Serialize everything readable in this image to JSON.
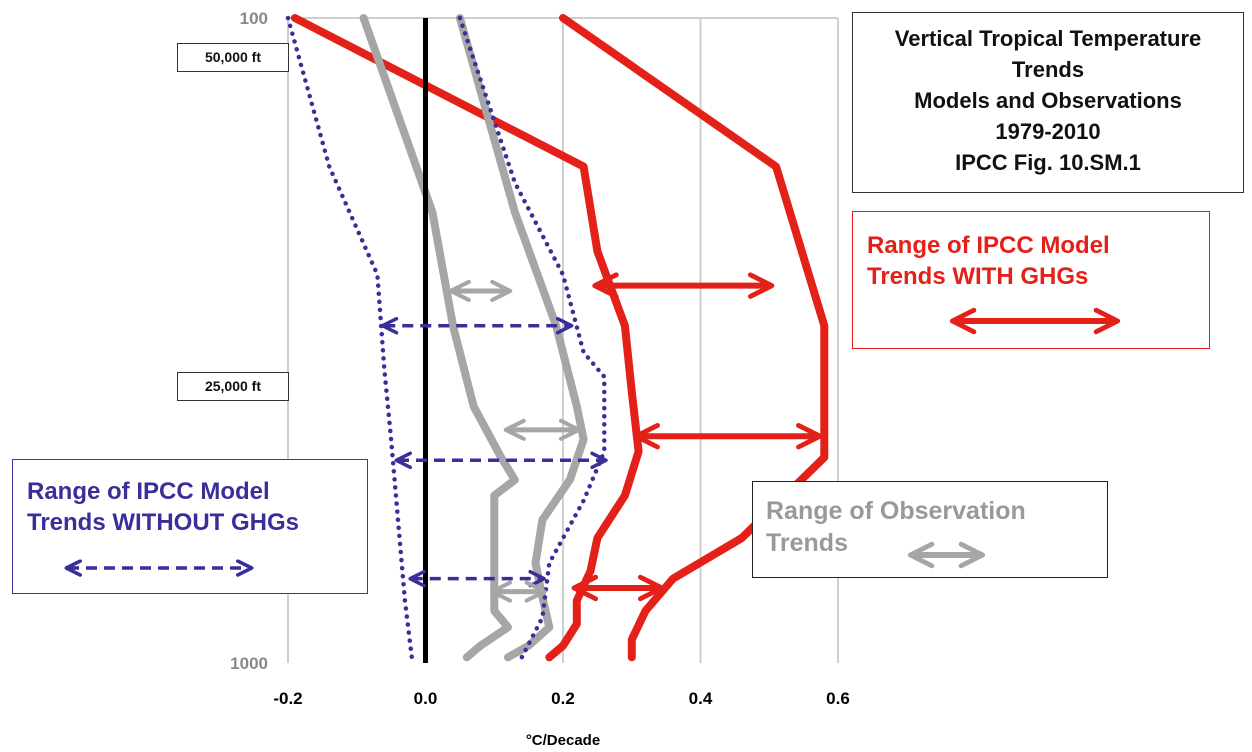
{
  "chart_data": {
    "type": "line",
    "title_lines": [
      "Vertical Tropical Temperature",
      "Trends",
      "Models and Observations",
      "1979-2010",
      "IPCC Fig. 10.SM.1"
    ],
    "xlabel": "°C/Decade",
    "x_ticks": [
      "-0.2",
      "0.0",
      "0.2",
      "0.4",
      "0.6"
    ],
    "x_tick_values": [
      -0.2,
      0.0,
      0.2,
      0.4,
      0.6
    ],
    "xlim": [
      -0.2,
      0.6
    ],
    "y_ticks": [
      "100",
      "1000"
    ],
    "y_axis_direction": "pressure decreasing upward",
    "altitude_labels": [
      "50,000 ft",
      "25,000 ft"
    ],
    "grid": true,
    "series": [
      {
        "role": "with_ghg_min",
        "color": "#e32119",
        "style": "solid",
        "points": [
          [
            -0.19,
            100
          ],
          [
            0.23,
            170
          ],
          [
            0.25,
            230
          ],
          [
            0.29,
            300
          ],
          [
            0.3,
            380
          ],
          [
            0.31,
            470
          ],
          [
            0.29,
            550
          ],
          [
            0.25,
            640
          ],
          [
            0.24,
            720
          ],
          [
            0.22,
            800
          ],
          [
            0.22,
            870
          ],
          [
            0.2,
            940
          ],
          [
            0.18,
            980
          ]
        ]
      },
      {
        "role": "with_ghg_max",
        "color": "#e32119",
        "style": "solid",
        "points": [
          [
            0.2,
            100
          ],
          [
            0.51,
            170
          ],
          [
            0.58,
            300
          ],
          [
            0.58,
            480
          ],
          [
            0.46,
            640
          ],
          [
            0.36,
            740
          ],
          [
            0.32,
            830
          ],
          [
            0.3,
            920
          ],
          [
            0.3,
            980
          ]
        ]
      },
      {
        "role": "obs_min",
        "color": "#a6a6a6",
        "style": "solid",
        "points": [
          [
            -0.09,
            100
          ],
          [
            0.01,
            200
          ],
          [
            0.04,
            300
          ],
          [
            0.07,
            400
          ],
          [
            0.11,
            480
          ],
          [
            0.13,
            520
          ],
          [
            0.1,
            550
          ],
          [
            0.1,
            690
          ],
          [
            0.1,
            830
          ],
          [
            0.12,
            880
          ],
          [
            0.08,
            940
          ],
          [
            0.06,
            980
          ]
        ]
      },
      {
        "role": "obs_max",
        "color": "#a6a6a6",
        "style": "solid",
        "points": [
          [
            0.05,
            100
          ],
          [
            0.13,
            200
          ],
          [
            0.19,
            300
          ],
          [
            0.22,
            400
          ],
          [
            0.23,
            450
          ],
          [
            0.21,
            520
          ],
          [
            0.17,
            600
          ],
          [
            0.16,
            700
          ],
          [
            0.17,
            790
          ],
          [
            0.18,
            880
          ],
          [
            0.15,
            940
          ],
          [
            0.12,
            980
          ]
        ]
      },
      {
        "role": "without_ghg_min",
        "color": "#3a2f99",
        "style": "dotted",
        "points": [
          [
            -0.2,
            100
          ],
          [
            -0.14,
            170
          ],
          [
            -0.07,
            250
          ],
          [
            -0.06,
            350
          ],
          [
            -0.05,
            450
          ],
          [
            -0.04,
            600
          ],
          [
            -0.03,
            800
          ],
          [
            -0.02,
            980
          ]
        ]
      },
      {
        "role": "without_ghg_max",
        "color": "#3a2f99",
        "style": "dotted",
        "points": [
          [
            0.05,
            100
          ],
          [
            0.13,
            180
          ],
          [
            0.2,
            250
          ],
          [
            0.23,
            330
          ],
          [
            0.26,
            360
          ],
          [
            0.26,
            470
          ],
          [
            0.23,
            560
          ],
          [
            0.18,
            700
          ],
          [
            0.17,
            850
          ],
          [
            0.14,
            980
          ]
        ]
      }
    ],
    "range_arrows": [
      {
        "role": "with_ghg",
        "color": "#e32119",
        "style": "solid",
        "y": 260,
        "x": [
          0.25,
          0.5
        ]
      },
      {
        "role": "with_ghg",
        "color": "#e32119",
        "style": "solid",
        "y": 445,
        "x": [
          0.31,
          0.57
        ]
      },
      {
        "role": "with_ghg",
        "color": "#e32119",
        "style": "solid",
        "y": 765,
        "x": [
          0.22,
          0.34
        ]
      },
      {
        "role": "without_ghg",
        "color": "#3a2f99",
        "style": "dashed",
        "y": 300,
        "x": [
          -0.06,
          0.21
        ]
      },
      {
        "role": "without_ghg",
        "color": "#3a2f99",
        "style": "dashed",
        "y": 485,
        "x": [
          -0.04,
          0.26
        ]
      },
      {
        "role": "without_ghg",
        "color": "#3a2f99",
        "style": "dashed",
        "y": 740,
        "x": [
          -0.02,
          0.17
        ]
      },
      {
        "role": "obs",
        "color": "#a6a6a6",
        "style": "solid",
        "y": 265,
        "x": [
          0.04,
          0.12
        ]
      },
      {
        "role": "obs",
        "color": "#a6a6a6",
        "style": "solid",
        "y": 435,
        "x": [
          0.12,
          0.22
        ]
      },
      {
        "role": "obs",
        "color": "#a6a6a6",
        "style": "solid",
        "y": 775,
        "x": [
          0.1,
          0.17
        ]
      }
    ]
  },
  "legend": {
    "with_ghg": "Range of IPCC Model Trends WITH GHGs",
    "with_ghg_lines": [
      "Range of IPCC Model",
      "Trends WITH GHGs"
    ],
    "without_ghg_lines": [
      "Range of IPCC Model",
      "Trends WITHOUT GHGs"
    ],
    "obs_lines": [
      "Range of Observation",
      "Trends"
    ]
  },
  "colors": {
    "red": "#e32119",
    "gray": "#a6a6a6",
    "navy": "#3a2f99",
    "zero_line": "#000000"
  }
}
